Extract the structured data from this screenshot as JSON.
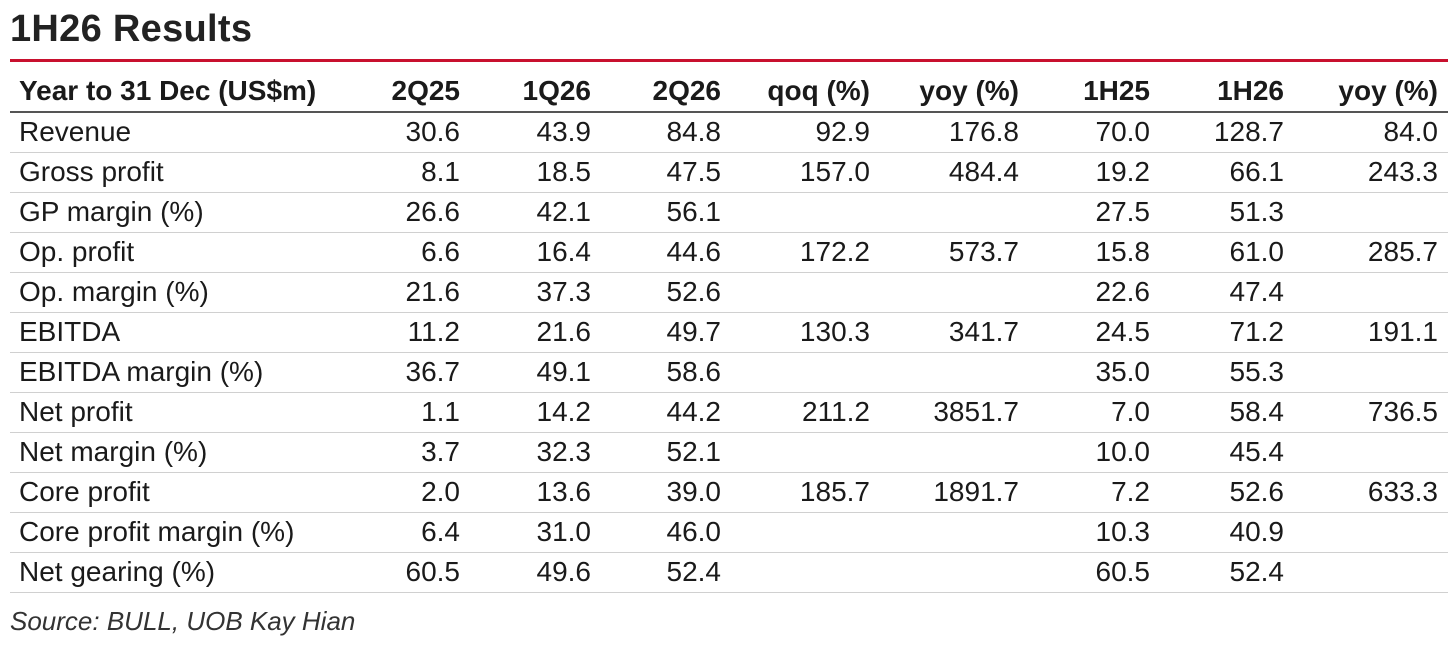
{
  "title": "1H26 Results",
  "accent_color": "#c8102e",
  "table": {
    "headers": [
      "Year to 31 Dec (US$m)",
      "2Q25",
      "1Q26",
      "2Q26",
      "qoq (%)",
      "yoy (%)",
      "1H25",
      "1H26",
      "yoy (%)"
    ],
    "rows": [
      [
        "Revenue",
        "30.6",
        "43.9",
        "84.8",
        "92.9",
        "176.8",
        "70.0",
        "128.7",
        "84.0"
      ],
      [
        "Gross profit",
        "8.1",
        "18.5",
        "47.5",
        "157.0",
        "484.4",
        "19.2",
        "66.1",
        "243.3"
      ],
      [
        "GP margin (%)",
        "26.6",
        "42.1",
        "56.1",
        "",
        "",
        "27.5",
        "51.3",
        ""
      ],
      [
        "Op. profit",
        "6.6",
        "16.4",
        "44.6",
        "172.2",
        "573.7",
        "15.8",
        "61.0",
        "285.7"
      ],
      [
        "Op. margin (%)",
        "21.6",
        "37.3",
        "52.6",
        "",
        "",
        "22.6",
        "47.4",
        ""
      ],
      [
        "EBITDA",
        "11.2",
        "21.6",
        "49.7",
        "130.3",
        "341.7",
        "24.5",
        "71.2",
        "191.1"
      ],
      [
        "EBITDA margin (%)",
        "36.7",
        "49.1",
        "58.6",
        "",
        "",
        "35.0",
        "55.3",
        ""
      ],
      [
        "Net profit",
        "1.1",
        "14.2",
        "44.2",
        "211.2",
        "3851.7",
        "7.0",
        "58.4",
        "736.5"
      ],
      [
        "Net margin (%)",
        "3.7",
        "32.3",
        "52.1",
        "",
        "",
        "10.0",
        "45.4",
        ""
      ],
      [
        "Core profit",
        "2.0",
        "13.6",
        "39.0",
        "185.7",
        "1891.7",
        "7.2",
        "52.6",
        "633.3"
      ],
      [
        "Core profit margin (%)",
        "6.4",
        "31.0",
        "46.0",
        "",
        "",
        "10.3",
        "40.9",
        ""
      ],
      [
        "Net gearing (%)",
        "60.5",
        "49.6",
        "52.4",
        "",
        "",
        "60.5",
        "52.4",
        ""
      ]
    ]
  },
  "source": "Source: BULL, UOB Kay Hian"
}
